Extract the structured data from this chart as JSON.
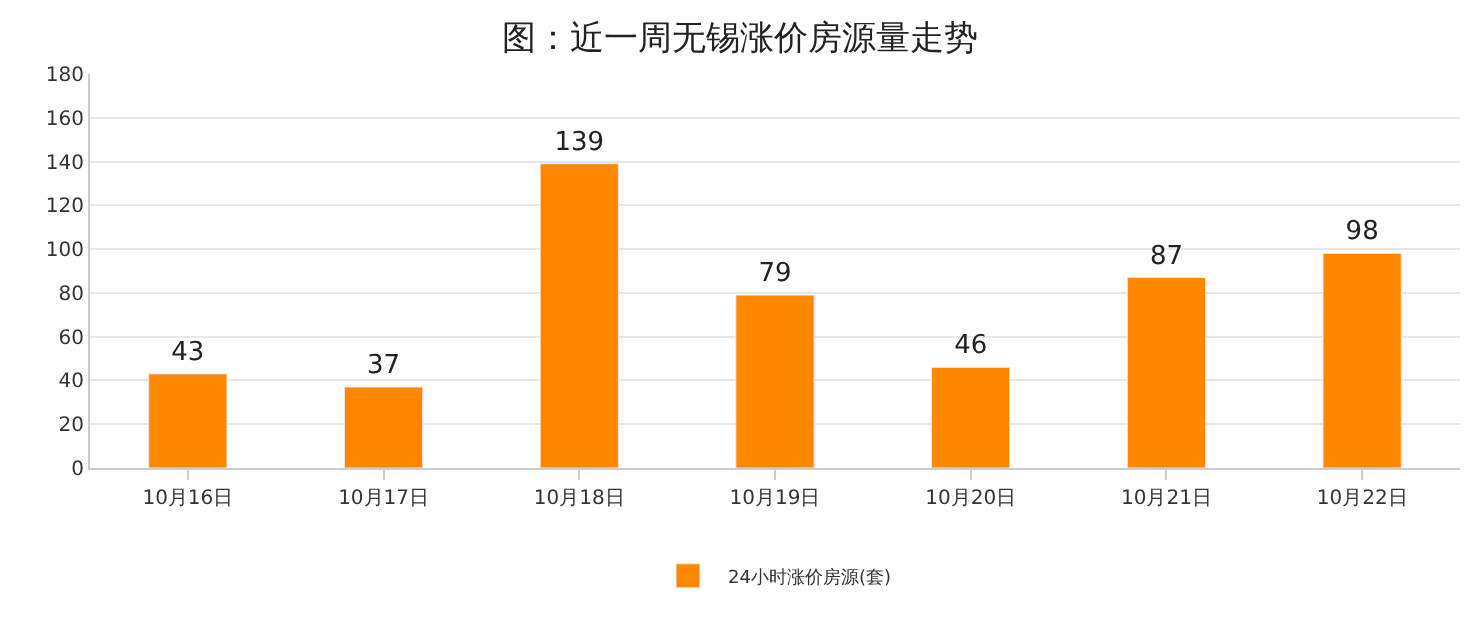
{
  "chart_data": {
    "type": "bar",
    "title": "图：近一周无锡涨价房源量走势",
    "categories": [
      "10月16日",
      "10月17日",
      "10月18日",
      "10月19日",
      "10月20日",
      "10月21日",
      "10月22日"
    ],
    "series": [
      {
        "name": "24小时涨价房源(套)",
        "color": "#ff8800",
        "values": [
          43,
          37,
          139,
          79,
          46,
          87,
          98
        ]
      }
    ],
    "ylim": [
      0,
      180
    ],
    "yticks": [
      0,
      20,
      40,
      60,
      80,
      100,
      120,
      140,
      160,
      180
    ],
    "grid": "y",
    "legend": "bottom",
    "data_labels": true
  }
}
